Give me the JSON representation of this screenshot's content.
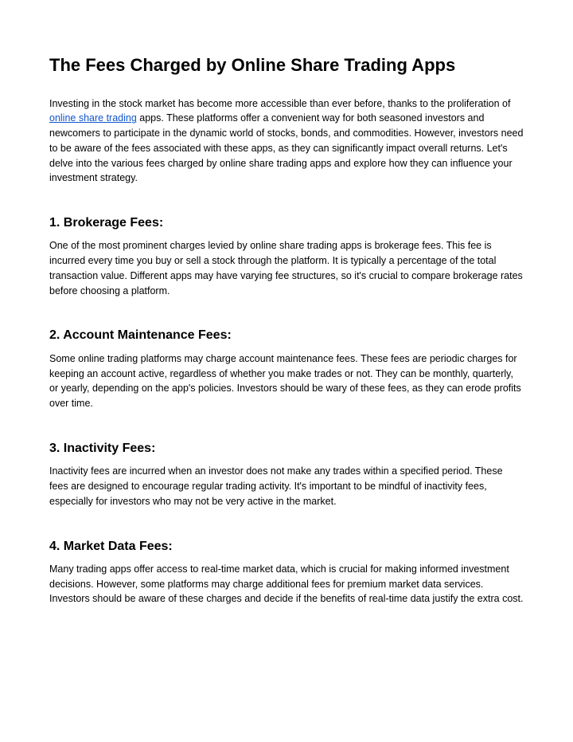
{
  "title": "The Fees Charged by Online Share Trading Apps",
  "intro": {
    "before_link": "Investing in the stock market has become more accessible than ever before, thanks to the proliferation of ",
    "link_text": "online share trading",
    "after_link": " apps. These platforms offer a convenient way for both seasoned investors and newcomers to participate in the dynamic world of stocks, bonds, and commodities. However, investors need to be aware of the fees associated with these apps, as they can significantly impact overall returns. Let's delve into the various fees charged by online share trading apps and explore how they can influence your investment strategy."
  },
  "sections": [
    {
      "heading": "1. Brokerage Fees:",
      "body": "One of the most prominent charges levied by online share trading apps is brokerage fees. This fee is incurred every time you buy or sell a stock through the platform. It is typically a percentage of the total transaction value. Different apps may have varying fee structures, so it's crucial to compare brokerage rates before choosing a platform."
    },
    {
      "heading": "2. Account Maintenance Fees:",
      "body": "Some online trading platforms may charge account maintenance fees. These fees are periodic charges for keeping an account active, regardless of whether you make trades or not. They can be monthly, quarterly, or yearly, depending on the app's policies. Investors should be wary of these fees, as they can erode profits over time."
    },
    {
      "heading": "3. Inactivity Fees:",
      "body": "Inactivity fees are incurred when an investor does not make any trades within a specified period. These fees are designed to encourage regular trading activity. It's important to be mindful of inactivity fees, especially for investors who may not be very active in the market."
    },
    {
      "heading": "4. Market Data Fees:",
      "body": "Many trading apps offer access to real-time market data, which is crucial for making informed investment decisions. However, some platforms may charge additional fees for premium market data services. Investors should be aware of these charges and decide if the benefits of real-time data justify the extra cost."
    }
  ]
}
